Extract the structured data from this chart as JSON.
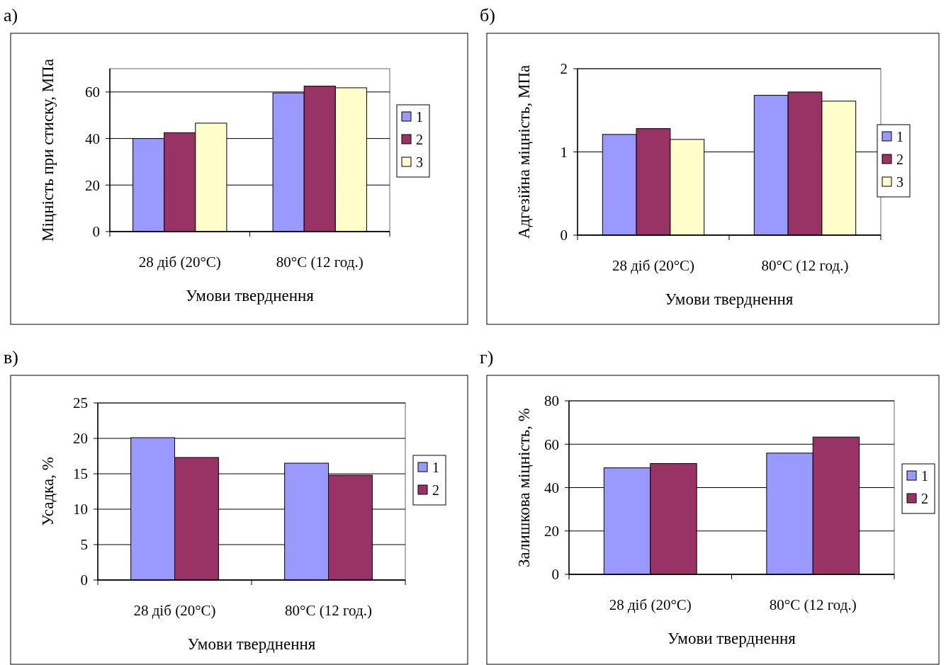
{
  "chart_data": [
    {
      "type": "bar",
      "title": "а)",
      "xlabel": "Умови тверднення",
      "ylabel": "Міцність при стиску, МПа",
      "categories": [
        "28 діб (20°C)",
        "80°C (12 год.)"
      ],
      "series": [
        {
          "name": "1",
          "color": "#9999ff",
          "values": [
            40,
            59.6
          ]
        },
        {
          "name": "2",
          "color": "#993366",
          "values": [
            42.5,
            62.5
          ]
        },
        {
          "name": "3",
          "color": "#ffffcc",
          "values": [
            46.6,
            61.8
          ]
        }
      ],
      "ylim": [
        0,
        70
      ],
      "yticks": [
        0,
        20,
        40,
        60
      ],
      "grid": "y",
      "legend": "right"
    },
    {
      "type": "bar",
      "title": "б)",
      "xlabel": "Умови тверднення",
      "ylabel": "Адгезійна міцність, МПа",
      "categories": [
        "28 діб (20°C)",
        "80°C (12 год.)"
      ],
      "series": [
        {
          "name": "1",
          "color": "#9999ff",
          "values": [
            1.21,
            1.68
          ]
        },
        {
          "name": "2",
          "color": "#993366",
          "values": [
            1.28,
            1.72
          ]
        },
        {
          "name": "3",
          "color": "#ffffcc",
          "values": [
            1.15,
            1.61
          ]
        }
      ],
      "ylim": [
        0,
        2
      ],
      "yticks": [
        0,
        1,
        2
      ],
      "grid": "y",
      "legend": "right"
    },
    {
      "type": "bar",
      "title": "в)",
      "xlabel": "Умови тверднення",
      "ylabel": "Усадка, %",
      "categories": [
        "28 діб (20°C)",
        "80°C (12 год.)"
      ],
      "series": [
        {
          "name": "1",
          "color": "#9999ff",
          "values": [
            20.1,
            16.5
          ]
        },
        {
          "name": "2",
          "color": "#993366",
          "values": [
            17.3,
            14.8
          ]
        }
      ],
      "ylim": [
        0,
        25
      ],
      "yticks": [
        0,
        5,
        10,
        15,
        20,
        25
      ],
      "grid": "y",
      "legend": "right"
    },
    {
      "type": "bar",
      "title": "г)",
      "xlabel": "Умови тверднення",
      "ylabel": "Залишкова міцність, %",
      "categories": [
        "28 діб (20°C)",
        "80°C (12 год.)"
      ],
      "series": [
        {
          "name": "1",
          "color": "#9999ff",
          "values": [
            49.1,
            55.9
          ]
        },
        {
          "name": "2",
          "color": "#993366",
          "values": [
            51.1,
            63.3
          ]
        }
      ],
      "ylim": [
        0,
        80
      ],
      "yticks": [
        0,
        20,
        40,
        60,
        80
      ],
      "grid": "y",
      "legend": "right"
    }
  ]
}
